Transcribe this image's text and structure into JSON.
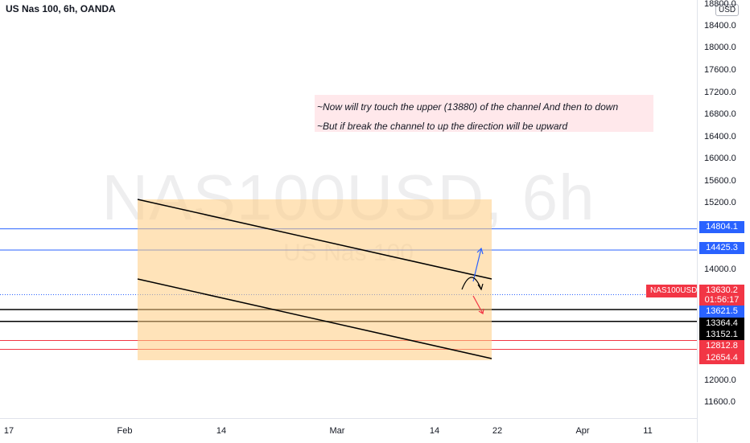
{
  "header": {
    "title": "US Nas 100, 6h, OANDA"
  },
  "watermark": {
    "symbol": "NAS100USD, 6h",
    "subtitle": "US Nas 100"
  },
  "notes": [
    "~Now will try touch the upper (13880) of the channel And then to down",
    "~But if break the channel to up the direction will be upward"
  ],
  "price_axis": {
    "currency": "USD",
    "ticks": [
      "18800.0",
      "18400.0",
      "18000.0",
      "17600.0",
      "17200.0",
      "16800.0",
      "16400.0",
      "16000.0",
      "15600.0",
      "15200.0",
      "14000.0",
      "12000.0",
      "11600.0"
    ],
    "tags": [
      {
        "label": "14804.1",
        "bg": "#2962ff"
      },
      {
        "label": "14425.3",
        "bg": "#2962ff"
      },
      {
        "label": "13630.2",
        "bg": "#f23645"
      },
      {
        "label": "01:56:17",
        "bg": "#f23645"
      },
      {
        "label": "13621.5",
        "bg": "#2962ff"
      },
      {
        "label": "13364.4",
        "bg": "#000000"
      },
      {
        "label": "13152.1",
        "bg": "#000000"
      },
      {
        "label": "12812.8",
        "bg": "#f23645"
      },
      {
        "label": "12654.4",
        "bg": "#f23645"
      }
    ]
  },
  "symbol_tag": "NAS100USD",
  "time_axis": {
    "labels": [
      "17",
      "Feb",
      "14",
      "Mar",
      "14",
      "22",
      "Apr",
      "11"
    ]
  },
  "colors": {
    "up": "#26a69a",
    "down": "#ef5350",
    "hline_blue": "#2962ff",
    "hline_red": "#f23645",
    "channel_fill": "#ffcc80"
  },
  "chart_data": {
    "type": "candlestick",
    "title": "US Nas 100, 6h, OANDA",
    "ylim": [
      11300,
      18900
    ],
    "price_levels": {
      "blue": [
        14804.1,
        14425.3
      ],
      "current": 13630.2,
      "black": [
        13364.4,
        13152.1
      ],
      "red": [
        12812.8,
        12654.4
      ],
      "channel_upper_target": 13880
    },
    "candles": []
  }
}
